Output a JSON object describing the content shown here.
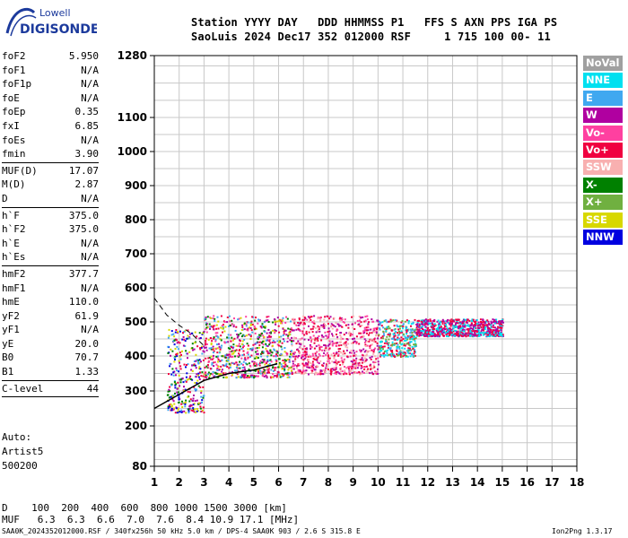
{
  "logo": {
    "line1": "Lowell",
    "line2": "DIGISONDE"
  },
  "header": {
    "line1": "Station YYYY DAY   DDD HHMMSS P1   FFS S AXN PPS IGA PS",
    "line2": "SaoLuis 2024 Dec17 352 012000 RSF     1 715 100 00- 11"
  },
  "params": [
    {
      "key": "foF2",
      "value": "5.950"
    },
    {
      "key": "foF1",
      "value": "N/A"
    },
    {
      "key": "foF1p",
      "value": "N/A"
    },
    {
      "key": "foE",
      "value": "N/A"
    },
    {
      "key": "foEp",
      "value": "0.35"
    },
    {
      "key": "fxI",
      "value": "6.85"
    },
    {
      "key": "foEs",
      "value": "N/A"
    },
    {
      "key": "fmin",
      "value": "3.90"
    },
    {
      "sep": true
    },
    {
      "key": "MUF(D)",
      "value": "17.07"
    },
    {
      "key": "M(D)",
      "value": "2.87"
    },
    {
      "key": "D",
      "value": "N/A"
    },
    {
      "sep": true
    },
    {
      "key": "h`F",
      "value": "375.0"
    },
    {
      "key": "h`F2",
      "value": "375.0"
    },
    {
      "key": "h`E",
      "value": "N/A"
    },
    {
      "key": "h`Es",
      "value": "N/A"
    },
    {
      "sep": true
    },
    {
      "key": "hmF2",
      "value": "377.7"
    },
    {
      "key": "hmF1",
      "value": "N/A"
    },
    {
      "key": "hmE",
      "value": "110.0"
    },
    {
      "key": "yF2",
      "value": "61.9"
    },
    {
      "key": "yF1",
      "value": "N/A"
    },
    {
      "key": "yE",
      "value": "20.0"
    },
    {
      "key": "B0",
      "value": "70.7"
    },
    {
      "key": "B1",
      "value": "1.33"
    },
    {
      "sep": true
    },
    {
      "key": "C-level",
      "value": "44"
    },
    {
      "sep": true
    }
  ],
  "auto": {
    "line1": "Auto:",
    "line2": "Artist5",
    "line3": "500200"
  },
  "legend": [
    {
      "label": "NoVal",
      "color": "#a0a0a0"
    },
    {
      "label": "NNE",
      "color": "#00e0f0"
    },
    {
      "label": "E",
      "color": "#40a8f0"
    },
    {
      "label": "W",
      "color": "#b000a0"
    },
    {
      "label": "Vo-",
      "color": "#ff40a0"
    },
    {
      "label": "Vo+",
      "color": "#f00040"
    },
    {
      "label": "SSW",
      "color": "#f8b0b0"
    },
    {
      "label": "X-",
      "color": "#008000"
    },
    {
      "label": "X+",
      "color": "#70b040"
    },
    {
      "label": "SSE",
      "color": "#d8d800"
    },
    {
      "label": "NNW",
      "color": "#0000e0"
    }
  ],
  "bottom": {
    "d_row": "D    100  200  400  600  800 1000 1500 3000 [km]",
    "muf_row": "MUF   6.3  6.3  6.6  7.0  7.6  8.4 10.9 17.1 [MHz]"
  },
  "footer": {
    "left": "SAA0K_2024352012000.RSF / 340fx256h 50 kHz 5.0 km / DPS-4 SAA0K 903 / 2.6 S 315.8 E",
    "right": "Ion2Png 1.3.17"
  },
  "chart_data": {
    "type": "scatter",
    "title": "",
    "xlabel": "",
    "ylabel": "",
    "xlim": [
      1,
      18
    ],
    "ylim": [
      80,
      1280
    ],
    "x_ticks": [
      1,
      2,
      3,
      4,
      5,
      6,
      7,
      8,
      9,
      10,
      11,
      12,
      13,
      14,
      15,
      16,
      17,
      18
    ],
    "y_ticks": [
      80,
      200,
      300,
      400,
      500,
      600,
      700,
      800,
      900,
      1000,
      1100,
      1280
    ],
    "y_scale": "nonlinear (apparent height scale, compressed at top)",
    "grid": true,
    "clusters": [
      {
        "x_range": [
          1.5,
          3.0
        ],
        "y_range": [
          240,
          480
        ],
        "colors": [
          "NNW",
          "X-",
          "SSE",
          "E",
          "Vo+",
          "W"
        ]
      },
      {
        "x_range": [
          3.0,
          6.5
        ],
        "y_range": [
          340,
          520
        ],
        "colors": [
          "Vo+",
          "W",
          "E",
          "SSE",
          "X-",
          "Vo-"
        ]
      },
      {
        "x_range": [
          6.5,
          10.0
        ],
        "y_range": [
          350,
          520
        ],
        "colors": [
          "Vo+",
          "Vo-",
          "SSW",
          "W"
        ]
      },
      {
        "x_range": [
          10.0,
          11.5
        ],
        "y_range": [
          400,
          510
        ],
        "colors": [
          "Vo+",
          "E",
          "X+",
          "NNE"
        ]
      },
      {
        "x_range": [
          11.5,
          15.0
        ],
        "y_range": [
          460,
          510
        ],
        "colors": [
          "W",
          "NNE",
          "Vo+"
        ]
      }
    ],
    "trace_lines": [
      {
        "name": "",
        "style": "solid",
        "x": [
          1.0,
          2.0,
          3.0,
          4.0,
          5.0,
          5.95
        ],
        "y": [
          250,
          290,
          330,
          350,
          360,
          378
        ]
      },
      {
        "name": "",
        "style": "dashed",
        "x": [
          1.0,
          1.5,
          2.0,
          2.5,
          3.0
        ],
        "y": [
          570,
          520,
          490,
          465,
          430
        ]
      }
    ]
  }
}
